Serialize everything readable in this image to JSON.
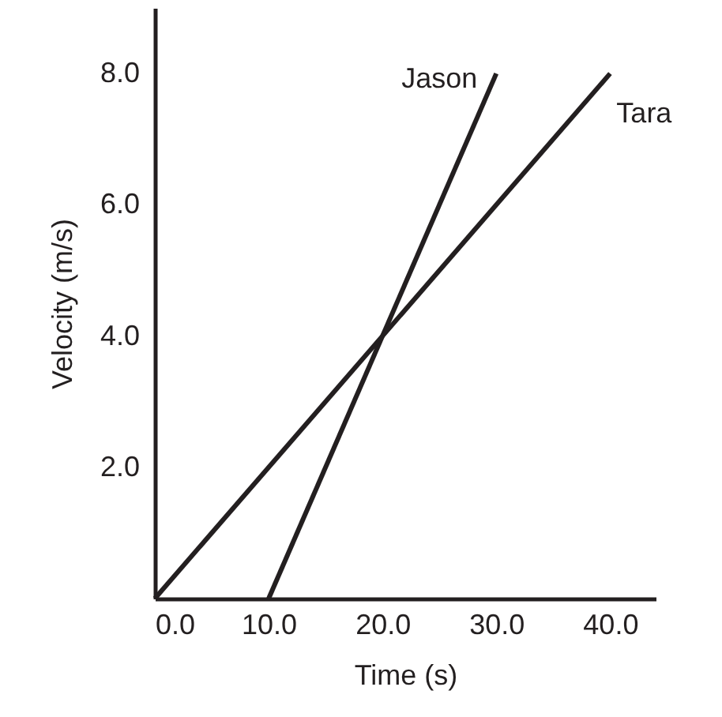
{
  "chart_data": {
    "type": "line",
    "xlabel": "Time (s)",
    "ylabel": "Velocity (m/s)",
    "xlim": [
      0,
      44
    ],
    "ylim": [
      0,
      9
    ],
    "xticks": [
      {
        "value": 0,
        "label": "0.0"
      },
      {
        "value": 10,
        "label": "10.0"
      },
      {
        "value": 20,
        "label": "20.0"
      },
      {
        "value": 30,
        "label": "30.0"
      },
      {
        "value": 40,
        "label": "40.0"
      }
    ],
    "yticks": [
      {
        "value": 2,
        "label": "2.0"
      },
      {
        "value": 4,
        "label": "4.0"
      },
      {
        "value": 6,
        "label": "6.0"
      },
      {
        "value": 8,
        "label": "8.0"
      }
    ],
    "grid": false,
    "marker": "none",
    "line_style": "solid",
    "series": [
      {
        "name": "Jason",
        "color": "#231f20",
        "x": [
          10,
          30
        ],
        "values": [
          0,
          8
        ]
      },
      {
        "name": "Tara",
        "color": "#231f20",
        "x": [
          0,
          40
        ],
        "values": [
          0,
          8
        ]
      }
    ]
  }
}
